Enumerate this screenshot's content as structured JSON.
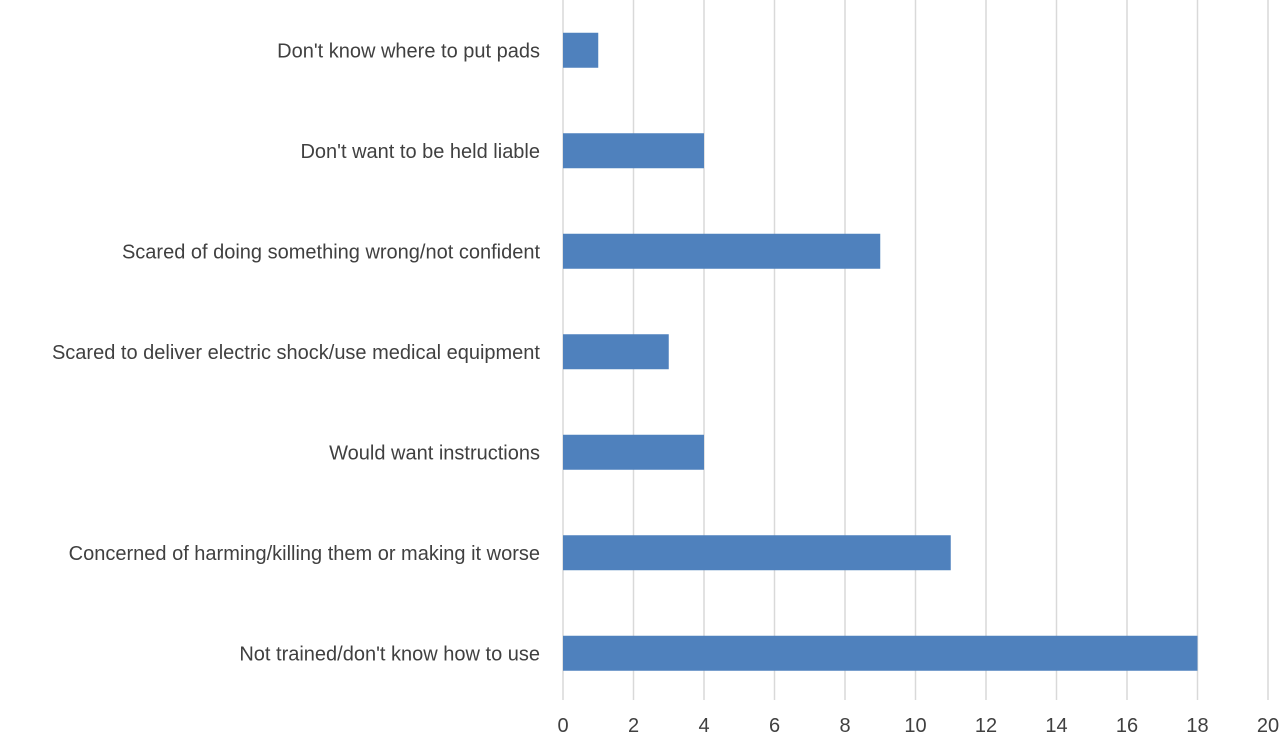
{
  "chart_data": {
    "type": "bar",
    "orientation": "horizontal",
    "categories": [
      "Don't know where to put pads",
      "Don't want to be held liable",
      "Scared of doing something wrong/not confident",
      "Scared to deliver electric shock/use medical equipment",
      "Would want instructions",
      "Concerned of harming/killing them or making it worse",
      "Not trained/don't know how to use"
    ],
    "values": [
      1,
      4,
      9,
      3,
      4,
      11,
      18
    ],
    "xlim": [
      0,
      20
    ],
    "xticks": [
      "0",
      "2",
      "4",
      "6",
      "8",
      "10",
      "12",
      "14",
      "16",
      "18",
      "20"
    ],
    "title": "",
    "xlabel": "",
    "ylabel": "",
    "grid": "vertical",
    "legend": "none",
    "bar_color": "#4f81bd"
  }
}
